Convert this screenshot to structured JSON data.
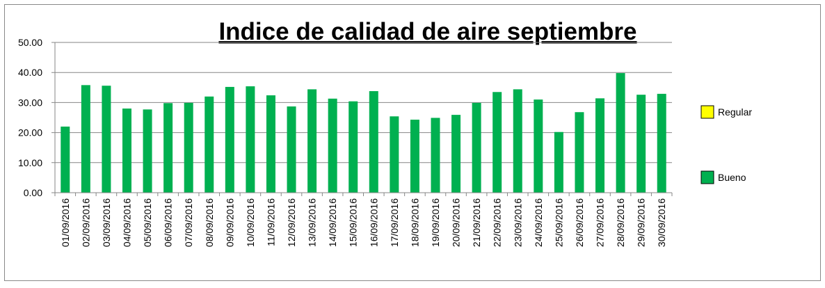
{
  "chart_data": {
    "type": "bar",
    "title": "Indice de calidad de aire septiembre",
    "categories": [
      "01/09/2016",
      "02/09/2016",
      "03/09/2016",
      "04/09/2016",
      "05/09/2016",
      "06/09/2016",
      "07/09/2016",
      "08/09/2016",
      "09/09/2016",
      "10/09/2016",
      "11/09/2016",
      "12/09/2016",
      "13/09/2016",
      "14/09/2016",
      "15/09/2016",
      "16/09/2016",
      "17/09/2016",
      "18/09/2016",
      "19/09/2016",
      "20/09/2016",
      "21/09/2016",
      "22/09/2016",
      "23/09/2016",
      "24/09/2016",
      "25/09/2016",
      "26/09/2016",
      "27/09/2016",
      "28/09/2016",
      "29/09/2016",
      "30/09/2016"
    ],
    "series": [
      {
        "name": "Regular",
        "color": "#ffff00",
        "values": [
          null,
          null,
          null,
          null,
          null,
          null,
          null,
          null,
          null,
          null,
          null,
          null,
          null,
          null,
          null,
          null,
          null,
          null,
          null,
          null,
          null,
          null,
          null,
          null,
          null,
          null,
          null,
          null,
          null,
          null
        ]
      },
      {
        "name": "Bueno",
        "color": "#00b050",
        "values": [
          22.0,
          35.8,
          35.6,
          28.0,
          27.7,
          29.8,
          29.9,
          32.0,
          35.2,
          35.4,
          32.4,
          28.7,
          34.4,
          31.3,
          30.4,
          33.8,
          25.4,
          24.3,
          24.9,
          25.9,
          29.9,
          33.5,
          34.4,
          31.0,
          20.2,
          26.8,
          31.4,
          39.8,
          32.6,
          32.9
        ]
      }
    ],
    "ylim": [
      0,
      50
    ],
    "yticks": [
      {
        "value": 0,
        "label": "0.00"
      },
      {
        "value": 10,
        "label": "10.00"
      },
      {
        "value": 20,
        "label": "20.00"
      },
      {
        "value": 30,
        "label": "30.00"
      },
      {
        "value": 40,
        "label": "40.00"
      },
      {
        "value": 50,
        "label": "50.00"
      }
    ],
    "grid": true,
    "legend": "right"
  }
}
